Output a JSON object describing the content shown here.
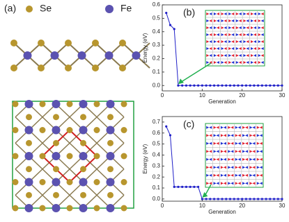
{
  "panel_a": {
    "label": "(a)",
    "legend": [
      {
        "name": "Se",
        "color": "#b8962e"
      },
      {
        "name": "Fe",
        "color": "#5b52b0"
      }
    ]
  },
  "chart_data": [
    {
      "type": "line",
      "label": "(b)",
      "xlabel": "Generation",
      "ylabel": "Energy (eV)",
      "x": [
        1,
        2,
        3,
        4,
        5,
        6,
        7,
        8,
        9,
        10,
        11,
        12,
        13,
        14,
        15,
        16,
        17,
        18,
        19,
        20,
        21,
        22,
        23,
        24,
        25,
        26,
        27,
        28,
        29,
        30
      ],
      "series": [
        {
          "color": "#2020c8",
          "values": [
            0.54,
            0.45,
            0.42,
            0,
            0,
            0,
            0,
            0,
            0,
            0,
            0,
            0,
            0,
            0,
            0,
            0,
            0,
            0,
            0,
            0,
            0,
            0,
            0,
            0,
            0,
            0,
            0,
            0,
            0,
            0
          ]
        }
      ],
      "xlim": [
        0,
        30
      ],
      "xticks": [
        0,
        10,
        20,
        30
      ],
      "ylim": [
        -0.04,
        0.6
      ],
      "yticks": [
        {
          "value": 0,
          "label": "0.0"
        },
        {
          "value": 0.1,
          "label": "0.1"
        },
        {
          "value": 0.2,
          "label": "0.2"
        },
        {
          "value": 0.3,
          "label": "0.3"
        },
        {
          "value": 0.4,
          "label": "0.4"
        },
        {
          "value": 0.5,
          "label": "0.5"
        },
        {
          "value": 0.6,
          "label": "0.6"
        }
      ]
    },
    {
      "type": "line",
      "label": "(c)",
      "xlabel": "Generation",
      "ylabel": "Energy (eV)",
      "x": [
        1,
        2,
        3,
        4,
        5,
        6,
        7,
        8,
        9,
        10,
        11,
        12,
        13,
        14,
        15,
        16,
        17,
        18,
        19,
        20,
        21,
        22,
        23,
        24,
        25,
        26,
        27,
        28,
        29,
        30
      ],
      "series": [
        {
          "color": "#2020c8",
          "values": [
            0.66,
            0.58,
            0.11,
            0.11,
            0.11,
            0.11,
            0.11,
            0.11,
            0.11,
            0,
            0,
            0,
            0,
            0,
            0,
            0,
            0,
            0,
            0,
            0,
            0,
            0,
            0,
            0,
            0,
            0,
            0,
            0,
            0,
            0
          ]
        }
      ],
      "xlim": [
        0,
        30
      ],
      "xticks": [
        0,
        10,
        20,
        30
      ],
      "ylim": [
        -0.02,
        0.75
      ],
      "yticks": [
        {
          "value": 0,
          "label": "0.0"
        },
        {
          "value": 0.1,
          "label": "0.1"
        },
        {
          "value": 0.2,
          "label": "0.2"
        },
        {
          "value": 0.3,
          "label": "0.3"
        },
        {
          "value": 0.4,
          "label": "0.4"
        },
        {
          "value": 0.5,
          "label": "0.5"
        },
        {
          "value": 0.6,
          "label": "0.6"
        },
        {
          "value": 0.7,
          "label": "0.7"
        }
      ]
    }
  ]
}
